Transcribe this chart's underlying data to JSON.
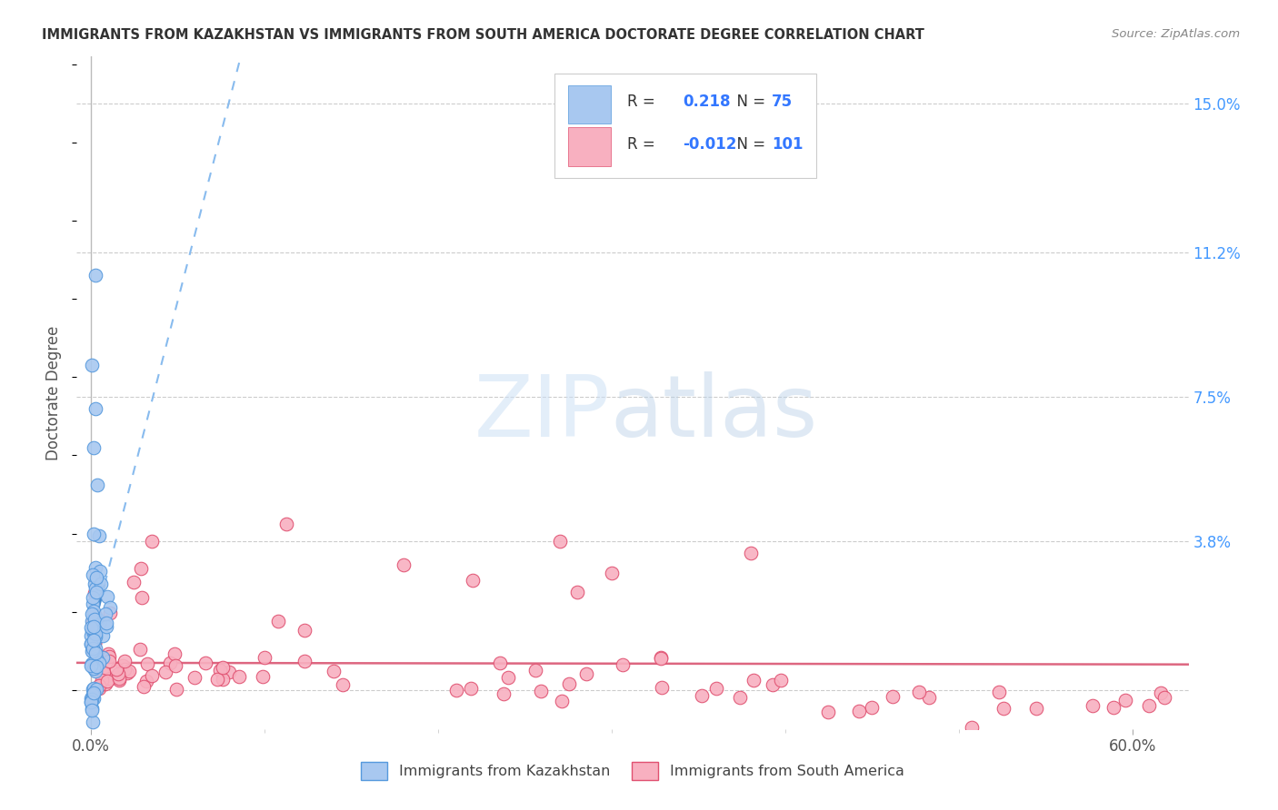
{
  "title": "IMMIGRANTS FROM KAZAKHSTAN VS IMMIGRANTS FROM SOUTH AMERICA DOCTORATE DEGREE CORRELATION CHART",
  "source": "Source: ZipAtlas.com",
  "ylabel_label": "Doctorate Degree",
  "ytick_vals": [
    0.0,
    0.038,
    0.075,
    0.112,
    0.15
  ],
  "ytick_labels": [
    "",
    "3.8%",
    "7.5%",
    "11.2%",
    "15.0%"
  ],
  "xtick_vals": [
    0.0,
    0.6
  ],
  "xtick_labels": [
    "0.0%",
    "60.0%"
  ],
  "xlim": [
    -0.008,
    0.632
  ],
  "ylim": [
    -0.01,
    0.162
  ],
  "legend_r_kaz": "0.218",
  "legend_n_kaz": "75",
  "legend_r_sa": "-0.012",
  "legend_n_sa": "101",
  "color_kaz_fill": "#a8c8f0",
  "color_kaz_edge": "#5599dd",
  "color_sa_fill": "#f8b0c0",
  "color_sa_edge": "#e05070",
  "color_kaz_line_solid": "#4488cc",
  "color_kaz_line_dash": "#88bbee",
  "color_sa_line": "#dd6680",
  "background_color": "#ffffff",
  "grid_color": "#cccccc",
  "title_color": "#333333",
  "source_color": "#888888",
  "raxis_color": "#4499ff",
  "legend_text_color": "#333333",
  "legend_val_color": "#3377ff"
}
